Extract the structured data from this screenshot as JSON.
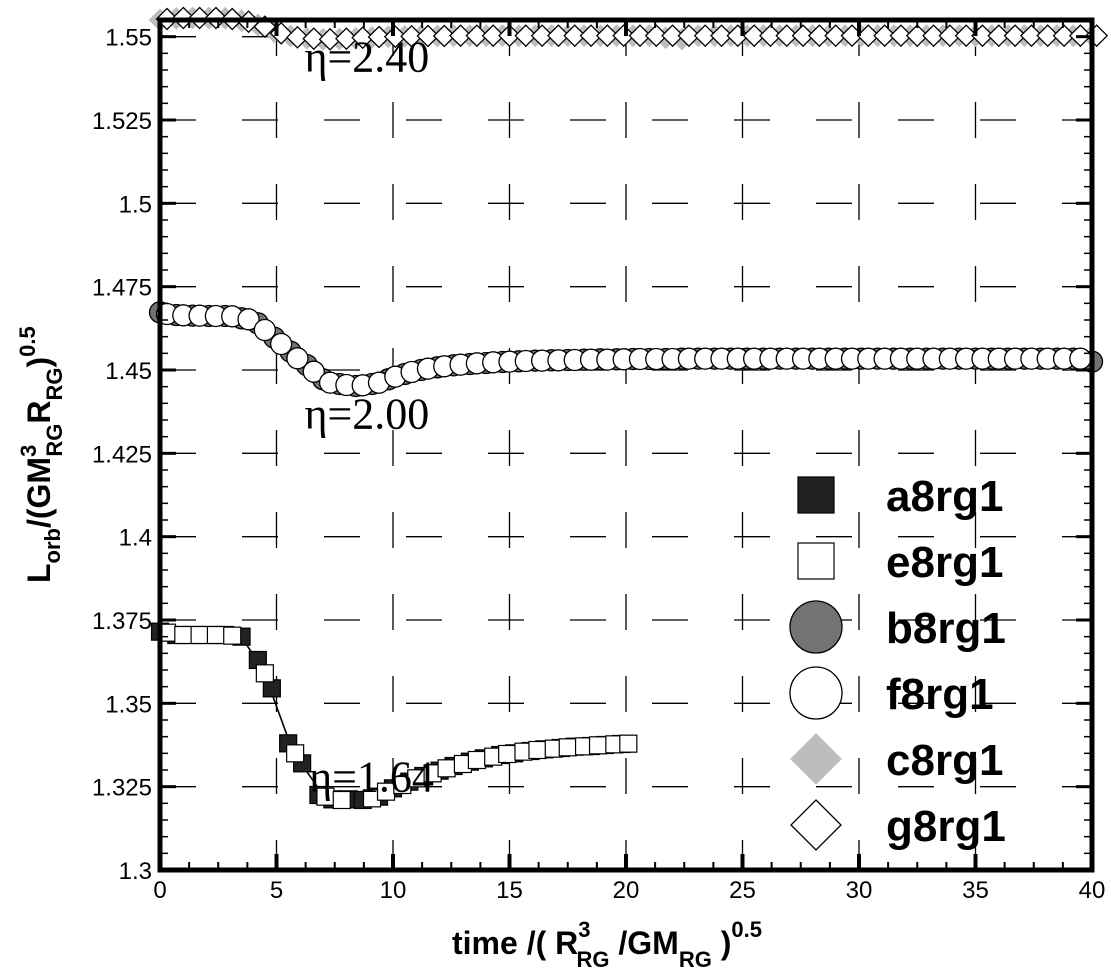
{
  "chart_data": {
    "type": "scatter",
    "xlim": [
      0,
      40
    ],
    "ylim": [
      1.3,
      1.555
    ],
    "x_ticks": [
      0,
      5,
      10,
      15,
      20,
      25,
      30,
      35,
      40
    ],
    "y_ticks": [
      1.3,
      1.325,
      1.35,
      1.375,
      1.4,
      1.425,
      1.45,
      1.475,
      1.5,
      1.525,
      1.55
    ],
    "x_tick_labels": [
      "0",
      "5",
      "10",
      "15",
      "20",
      "25",
      "30",
      "35",
      "40"
    ],
    "y_tick_labels": [
      "1.3",
      "1.325",
      "1.35",
      "1.375",
      "1.4",
      "1.425",
      "1.45",
      "1.475",
      "1.5",
      "1.525",
      "1.55"
    ],
    "grid": true,
    "legend_position": "bottom-right",
    "xlabel": {
      "prefix": "time /( R",
      "sup1": "3",
      "sub1": "RG",
      "mid": " /GM",
      "sub2": "RG",
      "suffix": " )",
      "exp": "0.5"
    },
    "ylabel": {
      "L": "L",
      "sub_orb": "orb",
      "mid": "/(GM",
      "sup3": "3",
      "sub_rg1": "RG",
      "R": "R",
      "sub_rg2": "RG",
      "close": ")",
      "exp": "0.5"
    },
    "annotations": [
      {
        "text": "η=2.40",
        "x": 6.2,
        "y": 1.5395
      },
      {
        "text": "η=2.00",
        "x": 6.2,
        "y": 1.4325
      },
      {
        "text": "η=1.64",
        "x": 6.4,
        "y": 1.3235
      }
    ],
    "series": [
      {
        "name": "a8rg1",
        "marker": "square",
        "fill": "#222222",
        "stroke": "#000000",
        "x": [
          0,
          0.7,
          1.4,
          2.1,
          2.8,
          3.5,
          4.2,
          4.8,
          5.5,
          6.1,
          6.8,
          7.4,
          8.1,
          8.7,
          9.4,
          10,
          10.7,
          11.3,
          12,
          12.6,
          13.3,
          13.9,
          14.6,
          15.2,
          15.9,
          16.5,
          17.2,
          17.8,
          18.5,
          19.1,
          19.8
        ],
        "y": [
          1.3715,
          1.3705,
          1.3705,
          1.3705,
          1.3705,
          1.37,
          1.363,
          1.3545,
          1.338,
          1.332,
          1.3225,
          1.3212,
          1.3212,
          1.321,
          1.322,
          1.3245,
          1.3265,
          1.3282,
          1.3298,
          1.3312,
          1.3325,
          1.3335,
          1.3345,
          1.335,
          1.3357,
          1.3362,
          1.3366,
          1.337,
          1.3372,
          1.3375,
          1.3378
        ]
      },
      {
        "name": "e8rg1",
        "marker": "square",
        "fill": "#ffffff",
        "stroke": "#000000",
        "x": [
          0.3,
          1.0,
          1.7,
          2.4,
          3.1,
          4.5,
          5.8,
          7.1,
          7.8,
          9.1,
          9.7,
          10.4,
          11.0,
          11.7,
          12.3,
          13.0,
          13.6,
          14.3,
          14.9,
          15.6,
          16.2,
          16.9,
          17.5,
          18.2,
          18.8,
          19.5,
          20.1
        ],
        "y": [
          1.3712,
          1.3705,
          1.3705,
          1.3705,
          1.3703,
          1.359,
          1.335,
          1.322,
          1.321,
          1.3215,
          1.3235,
          1.3255,
          1.3275,
          1.329,
          1.3305,
          1.3318,
          1.333,
          1.334,
          1.3348,
          1.3355,
          1.336,
          1.3364,
          1.3368,
          1.3371,
          1.3374,
          1.3377,
          1.3379
        ]
      },
      {
        "name": "b8rg1",
        "marker": "circle",
        "fill": "#737373",
        "stroke": "#000000",
        "x": [
          0,
          0.7,
          1.4,
          2.1,
          2.8,
          3.5,
          4.2,
          4.9,
          5.6,
          6.3,
          7.0,
          7.7,
          8.4,
          9.1,
          9.8,
          10.5,
          11.2,
          11.9,
          12.6,
          13.3,
          14,
          14.7,
          15.4,
          16.1,
          16.8,
          17.5,
          18.2,
          18.9,
          19.6,
          20.3,
          21.0,
          21.7,
          22.4,
          23.1,
          23.8,
          24.5,
          25.2,
          25.9,
          26.6,
          27.3,
          28.0,
          28.7,
          29.4,
          30.1,
          30.8,
          31.5,
          32.2,
          32.9,
          33.6,
          34.3,
          35.0,
          35.7,
          36.4,
          37.1,
          37.8,
          38.5,
          39.2,
          40.0
        ],
        "y": [
          1.4673,
          1.4665,
          1.4663,
          1.4662,
          1.4662,
          1.4655,
          1.464,
          1.4597,
          1.4555,
          1.4515,
          1.4472,
          1.4458,
          1.4452,
          1.4458,
          1.4472,
          1.4488,
          1.45,
          1.4508,
          1.4514,
          1.4518,
          1.4521,
          1.4524,
          1.4526,
          1.4528,
          1.4529,
          1.453,
          1.4531,
          1.4532,
          1.4532,
          1.4533,
          1.4533,
          1.4533,
          1.4534,
          1.4534,
          1.4534,
          1.4534,
          1.4534,
          1.4534,
          1.4534,
          1.4534,
          1.4534,
          1.4534,
          1.4534,
          1.4534,
          1.4534,
          1.4534,
          1.4534,
          1.4534,
          1.4534,
          1.4534,
          1.4534,
          1.4534,
          1.4534,
          1.4534,
          1.4534,
          1.4534,
          1.4534,
          1.4525
        ]
      },
      {
        "name": "f8rg1",
        "marker": "circle",
        "fill": "#ffffff",
        "stroke": "#000000",
        "x": [
          0.3,
          1.0,
          1.7,
          2.4,
          3.1,
          3.8,
          4.5,
          5.2,
          5.9,
          6.6,
          7.3,
          8.0,
          8.7,
          9.4,
          10.1,
          10.8,
          11.5,
          12.2,
          12.9,
          13.6,
          14.3,
          15.0,
          15.7,
          16.4,
          17.1,
          17.8,
          18.5,
          19.2,
          19.9,
          20.6,
          21.3,
          22.0,
          22.7,
          23.4,
          24.1,
          24.8,
          25.5,
          26.2,
          26.9,
          27.6,
          28.3,
          29.0,
          29.7,
          30.4,
          31.1,
          31.8,
          32.5,
          33.2,
          33.9,
          34.6,
          35.3,
          36.0,
          36.7,
          37.4,
          38.1,
          38.8,
          39.5
        ],
        "y": [
          1.4668,
          1.4664,
          1.4663,
          1.4662,
          1.4661,
          1.4652,
          1.462,
          1.4578,
          1.4535,
          1.4495,
          1.4462,
          1.4455,
          1.4454,
          1.4462,
          1.448,
          1.4494,
          1.4504,
          1.4511,
          1.4516,
          1.452,
          1.4523,
          1.4525,
          1.4527,
          1.4528,
          1.4529,
          1.453,
          1.4531,
          1.4531,
          1.4532,
          1.4533,
          1.4533,
          1.4533,
          1.4534,
          1.4534,
          1.4534,
          1.4534,
          1.4534,
          1.4534,
          1.4534,
          1.4534,
          1.4534,
          1.4534,
          1.4534,
          1.4534,
          1.4534,
          1.4534,
          1.4534,
          1.4534,
          1.4534,
          1.4534,
          1.4534,
          1.4534,
          1.4534,
          1.4534,
          1.4534,
          1.4534,
          1.4534
        ]
      },
      {
        "name": "c8rg1",
        "marker": "diamond",
        "fill": "#bdbdbd",
        "stroke": "#bdbdbd",
        "x": [
          0,
          0.7,
          1.4,
          2.1,
          2.8,
          3.5,
          4.2,
          4.9,
          5.6,
          6.3,
          7.0,
          7.7,
          8.4,
          9.1,
          9.8,
          10.5,
          11.2,
          11.9,
          12.6,
          13.3,
          14.0,
          14.7,
          15.4,
          16.1,
          16.8,
          17.5,
          18.2,
          18.9,
          19.6,
          20.3,
          21.0,
          21.7,
          22.4,
          23.1,
          23.8,
          24.5,
          25.2,
          25.9,
          26.6,
          27.3,
          28.0,
          28.7,
          29.4,
          30.1,
          30.8,
          31.5,
          32.2,
          32.9,
          33.6,
          34.3,
          35.0,
          35.7,
          36.4,
          37.1,
          37.8,
          38.5,
          39.2,
          40.0
        ],
        "y": [
          1.555,
          1.5555,
          1.5556,
          1.5556,
          1.5555,
          1.5548,
          1.5535,
          1.5515,
          1.5502,
          1.5495,
          1.5492,
          1.5493,
          1.5495,
          1.5498,
          1.55,
          1.5501,
          1.5502,
          1.5502,
          1.5503,
          1.5503,
          1.5503,
          1.5503,
          1.5503,
          1.5503,
          1.5503,
          1.5503,
          1.5503,
          1.5503,
          1.5503,
          1.5503,
          1.5503,
          1.5497,
          1.5493,
          1.5503,
          1.5503,
          1.5503,
          1.5503,
          1.5503,
          1.5503,
          1.5503,
          1.5503,
          1.5503,
          1.5503,
          1.5503,
          1.5503,
          1.5503,
          1.5503,
          1.5503,
          1.5503,
          1.5503,
          1.5503,
          1.5503,
          1.5503,
          1.5503,
          1.5503,
          1.5503,
          1.5503,
          1.5503
        ]
      },
      {
        "name": "g8rg1",
        "marker": "diamond",
        "fill": "#ffffff",
        "stroke": "#000000",
        "x": [
          0.3,
          1.0,
          1.7,
          2.4,
          3.1,
          3.8,
          4.5,
          5.2,
          5.9,
          6.6,
          7.3,
          8.0,
          8.7,
          9.4,
          10.1,
          10.8,
          11.5,
          12.2,
          12.9,
          13.6,
          14.3,
          15.0,
          15.7,
          16.4,
          17.1,
          17.8,
          18.5,
          19.2,
          19.9,
          20.6,
          21.3,
          22.0,
          22.7,
          23.4,
          24.1,
          24.8,
          25.5,
          26.2,
          26.9,
          27.6,
          28.3,
          29.0,
          29.7,
          30.4,
          31.1,
          31.8,
          32.5,
          33.2,
          33.9,
          34.6,
          35.3,
          36.0,
          36.7,
          37.4,
          38.1,
          38.8,
          39.5,
          40.2
        ],
        "y": [
          1.5553,
          1.5556,
          1.5556,
          1.5556,
          1.5553,
          1.5545,
          1.553,
          1.551,
          1.5498,
          1.5494,
          1.5492,
          1.5494,
          1.5497,
          1.5499,
          1.55,
          1.5501,
          1.5502,
          1.5502,
          1.5503,
          1.5503,
          1.5503,
          1.5503,
          1.5503,
          1.5503,
          1.5503,
          1.5503,
          1.5503,
          1.5503,
          1.5503,
          1.5503,
          1.5503,
          1.5503,
          1.5503,
          1.5503,
          1.5503,
          1.5503,
          1.5503,
          1.5503,
          1.5503,
          1.5503,
          1.5503,
          1.5503,
          1.5503,
          1.5503,
          1.5503,
          1.5503,
          1.5503,
          1.5503,
          1.5503,
          1.5503,
          1.5503,
          1.5503,
          1.5503,
          1.5503,
          1.5503,
          1.5503,
          1.5503,
          1.5503
        ]
      }
    ],
    "fit_lines": [
      {
        "name": "",
        "series_ref": "a8rg1",
        "x": [
          0,
          1,
          2,
          3,
          3.5,
          4.2,
          4.8,
          5.5,
          6.2,
          6.9,
          7.5,
          8.2,
          8.8,
          9.5,
          10.2,
          11,
          12,
          13,
          14,
          15,
          16,
          17,
          18,
          19,
          20
        ],
        "y": [
          1.3715,
          1.3706,
          1.3705,
          1.3705,
          1.3698,
          1.3625,
          1.353,
          1.3395,
          1.3305,
          1.3235,
          1.321,
          1.3205,
          1.321,
          1.3225,
          1.3248,
          1.3275,
          1.3298,
          1.3318,
          1.3334,
          1.3346,
          1.3356,
          1.3364,
          1.337,
          1.3375,
          1.3379
        ]
      },
      {
        "name": "",
        "series_ref": "b8rg1",
        "x": [
          0,
          1,
          2,
          3,
          3.8,
          4.5,
          5.2,
          5.9,
          6.6,
          7.3,
          8.0,
          8.7,
          9.4,
          10.1,
          11,
          12,
          13,
          14,
          16,
          18,
          20,
          25,
          30,
          35,
          40
        ],
        "y": [
          1.4673,
          1.4664,
          1.4662,
          1.4662,
          1.465,
          1.4625,
          1.4585,
          1.4543,
          1.4503,
          1.447,
          1.4453,
          1.4451,
          1.4462,
          1.448,
          1.4497,
          1.4509,
          1.4516,
          1.4521,
          1.4526,
          1.4529,
          1.4531,
          1.4533,
          1.4534,
          1.4534,
          1.4532
        ]
      },
      {
        "name": "",
        "series_ref": "g8rg1",
        "x": [
          0,
          1,
          2,
          3,
          3.5,
          4.2,
          4.9,
          5.6,
          6.3,
          7.0,
          7.7,
          8.4,
          9.1,
          9.8,
          10.5,
          12,
          14,
          16,
          20,
          25,
          30,
          35,
          40
        ],
        "y": [
          1.5552,
          1.5556,
          1.5556,
          1.5555,
          1.555,
          1.5538,
          1.5518,
          1.5502,
          1.5495,
          1.5492,
          1.5493,
          1.5495,
          1.5498,
          1.55,
          1.5501,
          1.5502,
          1.5503,
          1.5503,
          1.5503,
          1.5503,
          1.5503,
          1.5503,
          1.5503
        ]
      }
    ]
  }
}
